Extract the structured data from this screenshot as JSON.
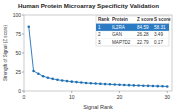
{
  "chart_data": {
    "type": "line",
    "title": "Human Protein Microarray Specificity Validation",
    "x_label": "Signal Rank",
    "y_label": "Strength of Signal (Z score)",
    "x": [
      1,
      2,
      3,
      4,
      5,
      6,
      7,
      8,
      9,
      10,
      11,
      12,
      13,
      14,
      15,
      16,
      17,
      18,
      19,
      20,
      21,
      22,
      23,
      24,
      25,
      26,
      27,
      28,
      29,
      30
    ],
    "values": [
      84.59,
      26.28,
      22.79,
      19.5,
      17.5,
      16,
      14.8,
      13.8,
      13,
      12.3,
      11.7,
      11.1,
      10.6,
      10.2,
      9.8,
      9.4,
      9.1,
      8.8,
      8.5,
      8.2,
      7.9,
      7.7,
      7.4,
      7.2,
      7.0,
      6.8,
      6.6,
      6.4,
      6.2,
      6.0
    ],
    "color": "#1f6fb4",
    "marker": "circle",
    "xlim": [
      0,
      31
    ],
    "xticks": [
      0,
      10,
      20,
      30
    ],
    "ylim": [
      0,
      100
    ],
    "yticks": [
      0,
      25,
      50,
      75,
      100
    ],
    "table": {
      "columns": [
        "Rank",
        "Protein",
        "Z score",
        "S score"
      ],
      "rows": [
        [
          1,
          "IL2RA",
          84.59,
          58.31
        ],
        [
          2,
          "GAN",
          26.28,
          3.49
        ],
        [
          3,
          "MAP7D2",
          22.79,
          0.17
        ]
      ]
    }
  }
}
